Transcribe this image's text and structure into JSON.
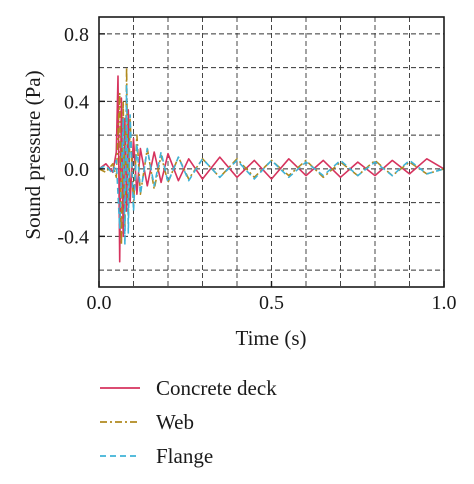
{
  "chart_data": {
    "type": "line",
    "title": "",
    "xlabel": "Time (s)",
    "ylabel": "Sound pressure (Pa)",
    "xlim": [
      0.0,
      1.0
    ],
    "ylim": [
      -0.7,
      0.9
    ],
    "x_ticks": [
      0.0,
      0.5,
      1.0
    ],
    "x_tick_labels": [
      "0.0",
      "0.5",
      "1.0"
    ],
    "y_ticks": [
      -0.4,
      0.0,
      0.4,
      0.8
    ],
    "y_tick_labels": [
      "-0.4",
      "0.0",
      "0.4",
      "0.8"
    ],
    "grid": true,
    "legend_position": "bottom",
    "series": [
      {
        "name": "Concrete deck",
        "color": "#d6335e",
        "line_style": "solid",
        "x": [
          0.0,
          0.02,
          0.04,
          0.05,
          0.055,
          0.06,
          0.065,
          0.07,
          0.075,
          0.08,
          0.085,
          0.09,
          0.1,
          0.11,
          0.12,
          0.14,
          0.16,
          0.18,
          0.2,
          0.23,
          0.26,
          0.3,
          0.35,
          0.4,
          0.45,
          0.5,
          0.55,
          0.6,
          0.65,
          0.7,
          0.75,
          0.8,
          0.85,
          0.9,
          0.95,
          1.0
        ],
        "values": [
          0.0,
          0.03,
          -0.02,
          0.1,
          0.55,
          -0.55,
          0.42,
          -0.4,
          0.3,
          -0.25,
          0.35,
          -0.2,
          0.18,
          -0.15,
          0.12,
          -0.1,
          0.1,
          -0.08,
          0.09,
          -0.07,
          0.06,
          -0.06,
          0.07,
          -0.05,
          0.05,
          -0.06,
          0.06,
          -0.04,
          0.05,
          -0.05,
          0.04,
          -0.04,
          0.05,
          -0.03,
          0.06,
          0.0
        ]
      },
      {
        "name": "Web",
        "color": "#b08a1e",
        "line_style": "dash-dot",
        "x": [
          0.0,
          0.02,
          0.04,
          0.05,
          0.06,
          0.065,
          0.07,
          0.075,
          0.08,
          0.085,
          0.09,
          0.1,
          0.11,
          0.12,
          0.14,
          0.16,
          0.18,
          0.2,
          0.23,
          0.26,
          0.3,
          0.35,
          0.4,
          0.45,
          0.5,
          0.55,
          0.6,
          0.65,
          0.7,
          0.75,
          0.8,
          0.85,
          0.9,
          0.95,
          1.0
        ],
        "values": [
          0.0,
          -0.02,
          0.03,
          -0.05,
          0.45,
          -0.45,
          0.4,
          -0.35,
          0.6,
          -0.3,
          0.3,
          -0.22,
          0.2,
          -0.15,
          0.12,
          -0.12,
          0.08,
          -0.08,
          0.07,
          -0.06,
          0.06,
          -0.05,
          0.06,
          -0.05,
          0.05,
          -0.04,
          0.05,
          -0.05,
          0.04,
          -0.04,
          0.05,
          -0.04,
          0.04,
          -0.03,
          0.0
        ]
      },
      {
        "name": "Flange",
        "color": "#3fb3d8",
        "line_style": "dashed",
        "x": [
          0.0,
          0.02,
          0.04,
          0.05,
          0.06,
          0.07,
          0.075,
          0.08,
          0.085,
          0.09,
          0.1,
          0.11,
          0.12,
          0.14,
          0.16,
          0.18,
          0.2,
          0.23,
          0.26,
          0.3,
          0.35,
          0.4,
          0.45,
          0.5,
          0.55,
          0.6,
          0.65,
          0.7,
          0.75,
          0.8,
          0.85,
          0.9,
          0.95,
          1.0
        ],
        "values": [
          0.0,
          0.02,
          -0.03,
          0.05,
          -0.35,
          0.3,
          -0.45,
          0.5,
          -0.38,
          0.32,
          -0.25,
          0.15,
          -0.15,
          0.12,
          -0.1,
          0.1,
          -0.08,
          0.07,
          -0.07,
          0.06,
          -0.05,
          0.05,
          -0.06,
          0.05,
          -0.05,
          0.04,
          -0.04,
          0.05,
          -0.04,
          0.04,
          -0.04,
          0.05,
          -0.03,
          0.0
        ]
      }
    ]
  }
}
